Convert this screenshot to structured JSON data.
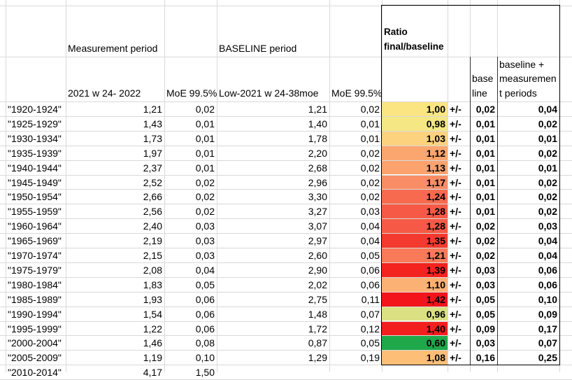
{
  "header": {
    "row2": [
      {
        "col": 1,
        "text": "Measurement period"
      },
      {
        "col": 3,
        "text": "BASELINE period"
      },
      {
        "col": 5,
        "text": "Ratio final/baseline"
      }
    ],
    "row3": [
      {
        "col": 1,
        "text": "2021 w 24- 2022"
      },
      {
        "col": 2,
        "text": "MoE 99.5%"
      },
      {
        "col": 3,
        "text": "Low-2021 w 24-38moe"
      },
      {
        "col": 4,
        "text": "MoE 99.5%"
      },
      {
        "col": 7,
        "text": "base line"
      },
      {
        "col": 8,
        "text": "baseline + measurement periods"
      }
    ]
  },
  "table": {
    "rows": [
      [
        "\"1920-1924\"",
        "1,21",
        "0,02",
        "1,21",
        "0,02",
        "1,00",
        "+/-",
        "0,02",
        "0,04"
      ],
      [
        "\"1925-1929\"",
        "1,43",
        "0,01",
        "1,40",
        "0,01",
        "0,98",
        "+/-",
        "0,01",
        "0,02"
      ],
      [
        "\"1930-1934\"",
        "1,73",
        "0,01",
        "1,78",
        "0,01",
        "1,03",
        "+/-",
        "0,01",
        "0,01"
      ],
      [
        "\"1935-1939\"",
        "1,97",
        "0,01",
        "2,20",
        "0,02",
        "1,12",
        "+/-",
        "0,01",
        "0,02"
      ],
      [
        "\"1940-1944\"",
        "2,37",
        "0,01",
        "2,68",
        "0,02",
        "1,13",
        "+/-",
        "0,01",
        "0,01"
      ],
      [
        "\"1945-1949\"",
        "2,52",
        "0,02",
        "2,96",
        "0,02",
        "1,17",
        "+/-",
        "0,01",
        "0,02"
      ],
      [
        "\"1950-1954\"",
        "2,66",
        "0,02",
        "3,30",
        "0,02",
        "1,24",
        "+/-",
        "0,01",
        "0,02"
      ],
      [
        "\"1955-1959\"",
        "2,56",
        "0,02",
        "3,27",
        "0,03",
        "1,28",
        "+/-",
        "0,01",
        "0,02"
      ],
      [
        "\"1960-1964\"",
        "2,40",
        "0,03",
        "3,07",
        "0,04",
        "1,28",
        "+/-",
        "0,02",
        "0,03"
      ],
      [
        "\"1965-1969\"",
        "2,19",
        "0,03",
        "2,97",
        "0,04",
        "1,35",
        "+/-",
        "0,02",
        "0,04"
      ],
      [
        "\"1970-1974\"",
        "2,15",
        "0,03",
        "2,60",
        "0,05",
        "1,21",
        "+/-",
        "0,02",
        "0,04"
      ],
      [
        "\"1975-1979\"",
        "2,08",
        "0,04",
        "2,90",
        "0,06",
        "1,39",
        "+/-",
        "0,03",
        "0,06"
      ],
      [
        "\"1980-1984\"",
        "1,83",
        "0,05",
        "2,02",
        "0,06",
        "1,10",
        "+/-",
        "0,03",
        "0,06"
      ],
      [
        "\"1985-1989\"",
        "1,93",
        "0,06",
        "2,75",
        "0,11",
        "1,42",
        "+/-",
        "0,05",
        "0,10"
      ],
      [
        "\"1990-1994\"",
        "1,54",
        "0,06",
        "1,48",
        "0,07",
        "0,96",
        "+/-",
        "0,05",
        "0,09"
      ],
      [
        "\"1995-1999\"",
        "1,22",
        "0,06",
        "1,72",
        "0,12",
        "1,40",
        "+/-",
        "0,09",
        "0,17"
      ],
      [
        "\"2000-2004\"",
        "1,46",
        "0,08",
        "0,87",
        "0,05",
        "0,60",
        "+/-",
        "0,03",
        "0,07"
      ],
      [
        "\"2005-2009\"",
        "1,19",
        "0,10",
        "1,29",
        "0,19",
        "1,08",
        "+/-",
        "0,16",
        "0,25"
      ],
      [
        "\"2010-2014\"",
        "4,17",
        "1,50"
      ]
    ],
    "ratio_colors": [
      "#fbe583",
      "#f4e784",
      "#fcd27f",
      "#fba66e",
      "#fba26d",
      "#f98d65",
      "#f76a4f",
      "#f65a46",
      "#f65a46",
      "#f43a2e",
      "#f87a59",
      "#f3231f",
      "#fcb174",
      "#f2141a",
      "#dbe182",
      "#f31e1e",
      "#1fa84a",
      "#fdbe78"
    ]
  }
}
